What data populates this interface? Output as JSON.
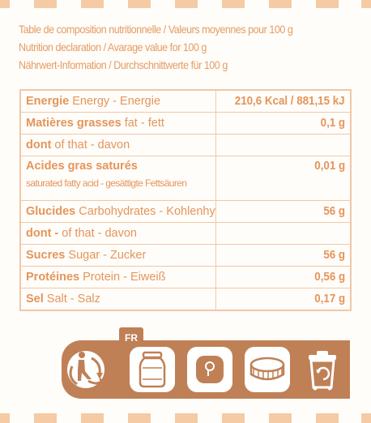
{
  "header": {
    "line_fr": "Table de composition nutritionnelle / Valeurs moyennes pour 100 g",
    "line_en": "Nutrition declaration / Avarage value for 100 g",
    "line_de": "Nährwert-Information / Durchschnittwerte für 100 g"
  },
  "table": {
    "rows": [
      {
        "bold": "Energie",
        "rest": " Energy - Energie",
        "value": "210,6 Kcal / 881,15 kJ"
      },
      {
        "bold": "Matières grasses",
        "rest": " fat - fett",
        "value": "0,1 g"
      },
      {
        "bold": "dont",
        "rest": " of that - davon",
        "value": ""
      },
      {
        "bold": "Acides gras saturés",
        "rest": "",
        "sub": "saturated fatty acid - gesättigte Fettsäuren",
        "value": "0,01 g"
      },
      {
        "bold": "Glucides",
        "rest": " Carbohydrates - Kohlenhydrate",
        "value": "56 g"
      },
      {
        "bold": "dont -",
        "rest": " of that - davon",
        "value": ""
      },
      {
        "bold": "Sucres",
        "rest": "  Sugar - Zucker",
        "value": "56 g"
      },
      {
        "bold": "Protéines",
        "rest": " Protein - Eiweiß",
        "value": "0,56 g"
      },
      {
        "bold": "Sel",
        "rest": "  Salt - Salz",
        "value": "0,17 g"
      }
    ]
  },
  "recycling": {
    "country": "FR",
    "icons": [
      "triman-icon",
      "jar-icon",
      "lid-icon",
      "bottle-cap-icon",
      "recycling-bin-icon"
    ],
    "banner_color": "#bf8056"
  },
  "colors": {
    "text": "#e4955b",
    "border": "#f0c8a6",
    "dash": "#f4cba4"
  }
}
